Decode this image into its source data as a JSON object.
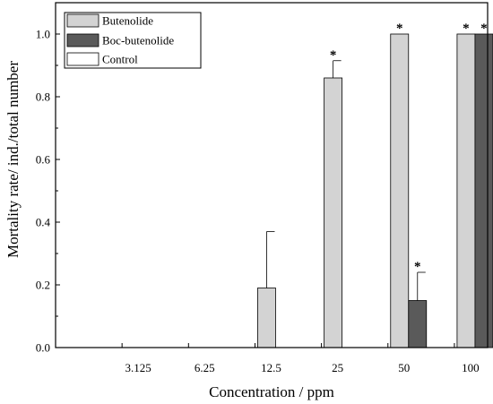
{
  "chart_data": {
    "type": "bar",
    "xlabel": "Concentration / ppm",
    "ylabel": "Mortality rate/ ind./total number",
    "ylim": [
      0,
      1.1
    ],
    "yticks": [
      "0.0",
      "0.2",
      "0.4",
      "0.6",
      "0.8",
      "1.0"
    ],
    "categories": [
      "3.125",
      "6.25",
      "12.5",
      "25",
      "50",
      "100"
    ],
    "series": [
      {
        "name": "Butenolide",
        "color": "#d3d3d3",
        "values": [
          0,
          0,
          0.19,
          0.86,
          1.0,
          1.0
        ],
        "errors": [
          0,
          0,
          0.18,
          0.055,
          0,
          0
        ],
        "significant": [
          false,
          false,
          false,
          true,
          true,
          true
        ]
      },
      {
        "name": "Boc-butenolide",
        "color": "#5a5a5a",
        "values": [
          0,
          0,
          0,
          0,
          0.15,
          1.0
        ],
        "errors": [
          0,
          0,
          0,
          0,
          0.09,
          0
        ],
        "significant": [
          false,
          false,
          false,
          false,
          true,
          true
        ]
      },
      {
        "name": "Control",
        "color": "#ffffff",
        "values": [
          0,
          0,
          0,
          0,
          0,
          0
        ],
        "errors": [
          0,
          0,
          0,
          0,
          0,
          0
        ],
        "significant": [
          false,
          false,
          false,
          false,
          false,
          false
        ]
      }
    ],
    "significance_marker": "*",
    "legend_position": "top-left",
    "grid": false
  }
}
